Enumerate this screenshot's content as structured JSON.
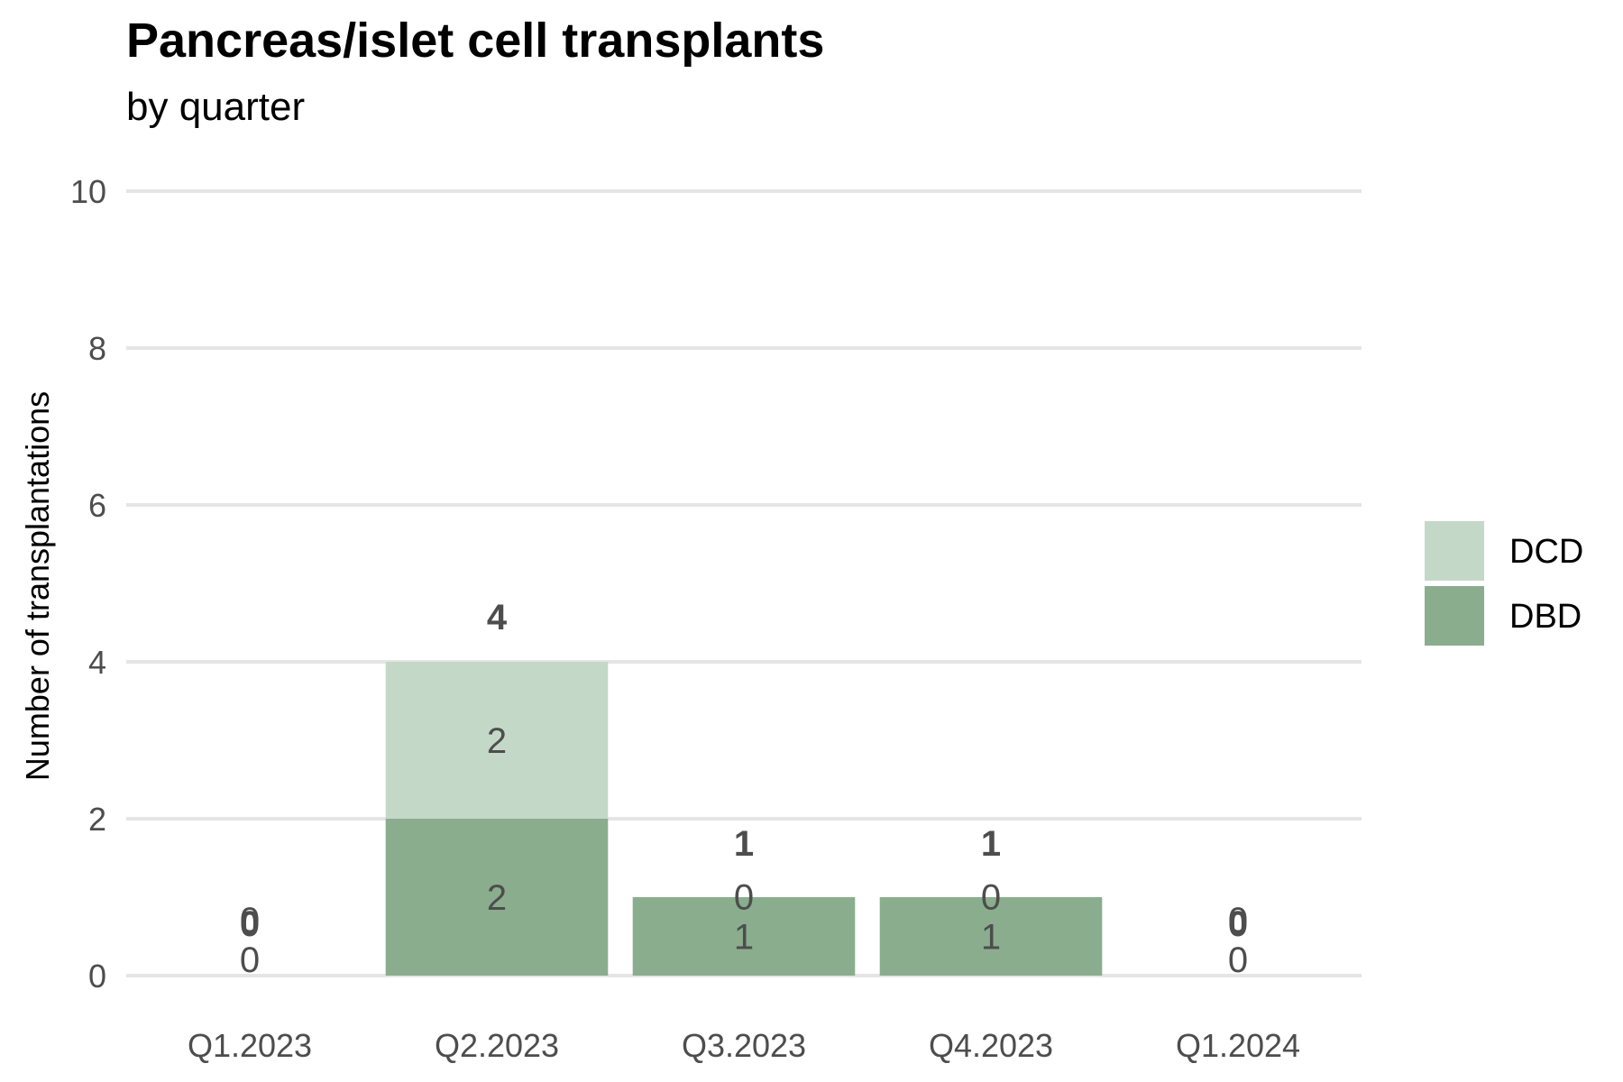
{
  "chart_data": {
    "type": "bar",
    "stacked": true,
    "title": "Pancreas/islet cell transplants",
    "subtitle": "by quarter",
    "xlabel": "",
    "ylabel": "Number of transplantations",
    "ylim": [
      0,
      10
    ],
    "yticks": [
      "0",
      "2",
      "4",
      "6",
      "8",
      "10"
    ],
    "categories": [
      "Q1.2023",
      "Q2.2023",
      "Q3.2023",
      "Q4.2023",
      "Q1.2024"
    ],
    "series": [
      {
        "name": "DBD",
        "values": [
          0,
          2,
          1,
          1,
          0
        ],
        "color": "#8aad8e"
      },
      {
        "name": "DCD",
        "values": [
          0,
          2,
          0,
          0,
          0
        ],
        "color": "#c4d8c8"
      }
    ],
    "totals": [
      0,
      4,
      1,
      1,
      0
    ],
    "legend": {
      "position": "right",
      "entries": [
        "DCD",
        "DBD"
      ]
    },
    "grid": true,
    "gridline_color": "#e5e5e5"
  }
}
